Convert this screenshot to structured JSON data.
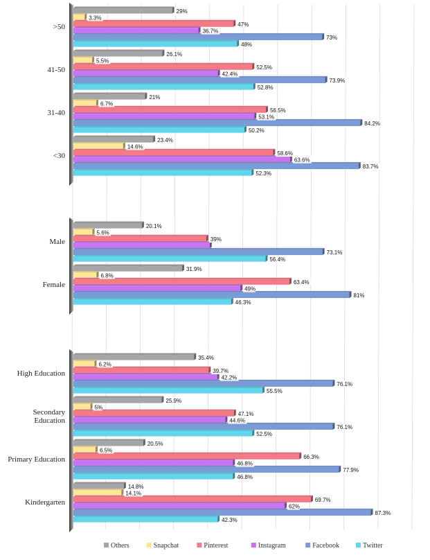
{
  "chart_data": {
    "type": "bar",
    "orientation": "horizontal",
    "xlim": [
      0,
      100
    ],
    "grid": true,
    "value_suffix": "%",
    "legend_position": "bottom",
    "series": [
      {
        "name": "Others",
        "color": "#a6a6a6"
      },
      {
        "name": "Snapchat",
        "color": "#ffe699"
      },
      {
        "name": "Pinterest",
        "color": "#f47a86"
      },
      {
        "name": "Instagram",
        "color": "#c774f0"
      },
      {
        "name": "Facebook",
        "color": "#7b9ad8"
      },
      {
        "name": "Twitter",
        "color": "#62d5ea"
      }
    ],
    "groups": [
      {
        "category": ">50",
        "values": [
          29,
          3.3,
          47,
          36.7,
          73,
          48
        ]
      },
      {
        "category": "41-50",
        "values": [
          26.1,
          5.5,
          52.5,
          42.4,
          73.9,
          52.8
        ]
      },
      {
        "category": "31-40",
        "values": [
          21,
          6.7,
          56.5,
          53.1,
          84.2,
          50.2
        ]
      },
      {
        "category": "<30",
        "values": [
          23.4,
          14.6,
          58.6,
          63.6,
          83.7,
          52.3
        ]
      },
      {
        "category": "Male",
        "values": [
          20.1,
          5.6,
          39,
          40,
          73.1,
          56.4
        ]
      },
      {
        "category": "Female",
        "values": [
          31.9,
          6.8,
          63.4,
          49,
          81,
          46.3
        ]
      },
      {
        "category": "High Education",
        "values": [
          35.4,
          6.2,
          39.7,
          42.2,
          76.1,
          55.5
        ]
      },
      {
        "category": "Secondary Education",
        "values": [
          25.9,
          5,
          47.1,
          44.6,
          76.1,
          52.5
        ]
      },
      {
        "category": "Primary Education",
        "values": [
          20.5,
          6.5,
          66.3,
          46.8,
          77.9,
          46.8
        ]
      },
      {
        "category": "Kindergarten",
        "values": [
          14.8,
          14.1,
          69.7,
          62,
          87.3,
          42.3
        ]
      }
    ],
    "value_labels": [
      [
        "29%",
        "3.3%",
        "47%",
        "36.7%",
        "73%",
        "48%"
      ],
      [
        "26.1%",
        "5.5%",
        "52.5%",
        "42.4%",
        "73.9%",
        "52.8%"
      ],
      [
        "21%",
        "6.7%",
        "56.5%",
        "53.1%",
        "84.2%",
        "50.2%"
      ],
      [
        "23.4%",
        "14.6%",
        "58.6%",
        "63.6%",
        "83.7%",
        "52.3%"
      ],
      [
        "20.1%",
        "5.6%",
        "39%",
        "",
        "73.1%",
        "56.4%"
      ],
      [
        "31.9%",
        "6.8%",
        "63.4%",
        "49%",
        "81%",
        "46.3%"
      ],
      [
        "35.4%",
        "6.2%",
        "39.7%",
        "42.2%",
        "76.1%",
        "55.5%"
      ],
      [
        "25.9%",
        "5%",
        "47.1%",
        "44.6%",
        "76.1%",
        "52.5%"
      ],
      [
        "20.5%",
        "6.5%",
        "66.3%",
        "46.8%",
        "77.9%",
        "46.8%"
      ],
      [
        "14.8%",
        "14.1%",
        "69.7%",
        "62%",
        "87.3%",
        "42.3%"
      ]
    ]
  }
}
